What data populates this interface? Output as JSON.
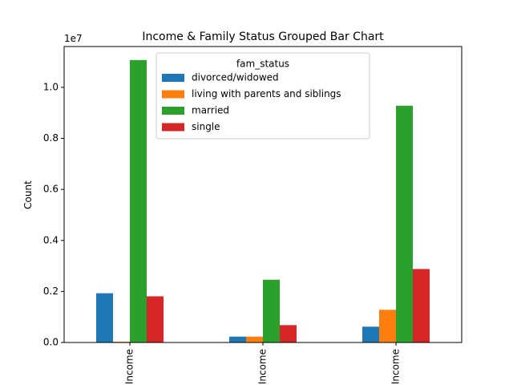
{
  "chart_data": {
    "type": "bar",
    "title": "Income & Family Status Grouped Bar Chart",
    "xlabel": "",
    "ylabel": "Count",
    "y_multiplier_label": "1e7",
    "y_scale": 10000000,
    "ylim": [
      0,
      11600000
    ],
    "yticks": [
      0,
      2000000,
      4000000,
      6000000,
      8000000,
      10000000
    ],
    "ytick_labels": [
      "0.0",
      "0.2",
      "0.4",
      "0.6",
      "0.8",
      "1.0"
    ],
    "categories": [
      "Income",
      "Income",
      "Income"
    ],
    "legend": {
      "title": "fam_status",
      "position": "upper center"
    },
    "series": [
      {
        "name": "divorced/widowed",
        "color": "#1f77b4",
        "values": [
          1930000,
          230000,
          620000
        ]
      },
      {
        "name": "living with parents and siblings",
        "color": "#ff7f0e",
        "values": [
          30000,
          230000,
          1280000
        ]
      },
      {
        "name": "married",
        "color": "#2ca02c",
        "values": [
          11070000,
          2460000,
          9280000
        ]
      },
      {
        "name": "single",
        "color": "#d62728",
        "values": [
          1810000,
          680000,
          2880000
        ]
      }
    ]
  }
}
